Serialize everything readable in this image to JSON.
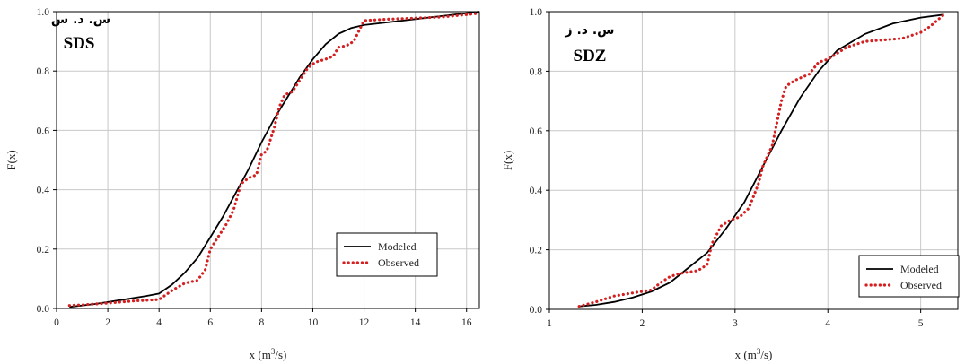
{
  "chart_data": [
    {
      "type": "line",
      "tag_fa": "س. د. س",
      "tag_en": "SDS",
      "xlabel": "x (m³/s)",
      "xlabel_main": "x (m",
      "xlabel_sup": "3",
      "xlabel_tail": "/s)",
      "ylabel": "F(x)",
      "xlim": [
        0,
        16.5
      ],
      "ylim": [
        0,
        1
      ],
      "xticks": [
        0,
        2,
        4,
        6,
        8,
        10,
        12,
        14,
        16
      ],
      "yticks": [
        0,
        0.2,
        0.4,
        0.6,
        0.8,
        1
      ],
      "ytick_labels": [
        "0.0",
        "0.2",
        "0.4",
        "0.6",
        "0.8",
        "1.0"
      ],
      "grid": true,
      "legend_position": "bottom-right",
      "series": [
        {
          "name": "Modeled",
          "color": "#000000",
          "x": [
            0.5,
            1.5,
            2.5,
            3.5,
            4.0,
            4.5,
            5.0,
            5.5,
            6.0,
            6.5,
            7.0,
            7.5,
            8.0,
            8.5,
            9.0,
            9.5,
            10.0,
            10.5,
            11.0,
            11.5,
            12.0,
            13.0,
            14.0,
            15.0,
            16.0,
            16.5
          ],
          "y": [
            0.005,
            0.015,
            0.028,
            0.042,
            0.05,
            0.08,
            0.12,
            0.17,
            0.24,
            0.31,
            0.39,
            0.47,
            0.56,
            0.64,
            0.71,
            0.78,
            0.84,
            0.89,
            0.925,
            0.945,
            0.955,
            0.965,
            0.975,
            0.985,
            0.995,
            1.0
          ]
        },
        {
          "name": "Observed",
          "color": "#d42020",
          "x": [
            0.5,
            1.0,
            2.0,
            3.0,
            4.0,
            4.5,
            5.0,
            5.5,
            5.8,
            6.0,
            6.3,
            6.6,
            6.9,
            7.2,
            7.5,
            7.8,
            8.0,
            8.2,
            8.5,
            8.7,
            8.9,
            9.2,
            9.5,
            9.8,
            10.1,
            10.5,
            10.8,
            11.0,
            11.3,
            11.6,
            12.0,
            13.0,
            14.0,
            15.0,
            16.0,
            16.5
          ],
          "y": [
            0.01,
            0.012,
            0.018,
            0.025,
            0.03,
            0.06,
            0.085,
            0.095,
            0.13,
            0.2,
            0.24,
            0.28,
            0.33,
            0.42,
            0.44,
            0.45,
            0.52,
            0.53,
            0.61,
            0.68,
            0.72,
            0.73,
            0.77,
            0.81,
            0.83,
            0.84,
            0.85,
            0.88,
            0.885,
            0.9,
            0.97,
            0.975,
            0.978,
            0.982,
            0.99,
            0.995
          ]
        }
      ]
    },
    {
      "type": "line",
      "tag_fa": "س. د. ز",
      "tag_en": "SDZ",
      "xlabel": "x (m³/s)",
      "xlabel_main": "x (m",
      "xlabel_sup": "3",
      "xlabel_tail": "/s)",
      "ylabel": "F(x)",
      "xlim": [
        1,
        5.4
      ],
      "ylim": [
        0,
        1
      ],
      "xticks": [
        1,
        2,
        3,
        4,
        5
      ],
      "yticks": [
        0,
        0.2,
        0.4,
        0.6,
        0.8,
        1
      ],
      "ytick_labels": [
        "0.0",
        "0.2",
        "0.4",
        "0.6",
        "0.8",
        "1.0"
      ],
      "grid": true,
      "legend_position": "bottom-right",
      "series": [
        {
          "name": "Modeled",
          "color": "#000000",
          "x": [
            1.32,
            1.5,
            1.7,
            1.9,
            2.1,
            2.3,
            2.5,
            2.7,
            2.9,
            3.1,
            3.3,
            3.5,
            3.7,
            3.9,
            4.1,
            4.4,
            4.7,
            5.0,
            5.25
          ],
          "y": [
            0.01,
            0.015,
            0.025,
            0.04,
            0.06,
            0.09,
            0.14,
            0.19,
            0.27,
            0.36,
            0.48,
            0.6,
            0.71,
            0.8,
            0.87,
            0.925,
            0.96,
            0.98,
            0.99
          ]
        },
        {
          "name": "Observed",
          "color": "#d42020",
          "x": [
            1.32,
            1.5,
            1.7,
            1.9,
            2.1,
            2.2,
            2.3,
            2.4,
            2.6,
            2.7,
            2.75,
            2.85,
            2.95,
            3.05,
            3.15,
            3.25,
            3.3,
            3.4,
            3.5,
            3.55,
            3.65,
            3.8,
            3.9,
            4.0,
            4.1,
            4.2,
            4.4,
            4.6,
            4.8,
            5.0,
            5.1,
            5.25
          ],
          "y": [
            0.01,
            0.025,
            0.045,
            0.055,
            0.065,
            0.09,
            0.11,
            0.12,
            0.13,
            0.15,
            0.22,
            0.28,
            0.3,
            0.31,
            0.34,
            0.42,
            0.48,
            0.55,
            0.7,
            0.75,
            0.77,
            0.79,
            0.83,
            0.84,
            0.86,
            0.88,
            0.9,
            0.905,
            0.91,
            0.93,
            0.95,
            0.99
          ]
        }
      ]
    }
  ]
}
